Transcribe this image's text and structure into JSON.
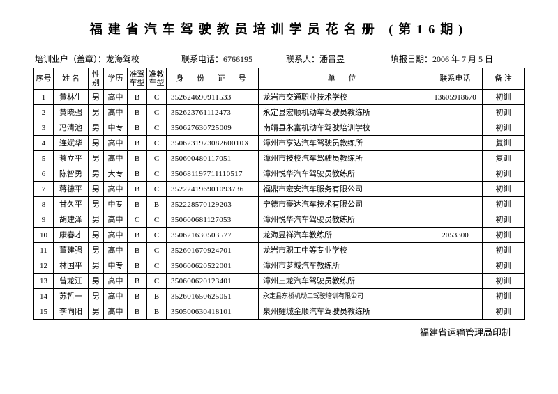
{
  "title": "福建省汽车驾驶教员培训学员花名册 (第16期)",
  "meta": {
    "org_label": "培训业户（盖章）：",
    "org_value": "龙海驾校",
    "tel_label": "联系电话：",
    "tel_value": "6766195",
    "contact_label": "联系人：",
    "contact_value": "潘晋昱",
    "date_label": "填报日期：",
    "date_value": "2006 年 7 月 5 日"
  },
  "columns": {
    "idx": "序号",
    "name": "姓 名",
    "sex": "性别",
    "edu": "学历",
    "car1": "准驾车型",
    "car2": "准教车型",
    "id": "身 份 证 号",
    "unit": "单    位",
    "phone": "联系电话",
    "note": "备 注"
  },
  "rows": [
    {
      "idx": "1",
      "name": "黄林生",
      "sex": "男",
      "edu": "高中",
      "car1": "B",
      "car2": "C",
      "id": "352624690911533",
      "unit": "龙岩市交通职业技术学校",
      "phone": "13605918670",
      "note": "初训",
      "small": false
    },
    {
      "idx": "2",
      "name": "黄晓强",
      "sex": "男",
      "edu": "高中",
      "car1": "B",
      "car2": "C",
      "id": "352623761112473",
      "unit": "永定县宏顺机动车驾驶员教练所",
      "phone": "",
      "note": "初训",
      "small": false
    },
    {
      "idx": "3",
      "name": "冯清池",
      "sex": "男",
      "edu": "中专",
      "car1": "B",
      "car2": "C",
      "id": "350627630725009",
      "unit": "南靖县永富机动车驾驶培训学校",
      "phone": "",
      "note": "初训",
      "small": false
    },
    {
      "idx": "4",
      "name": "连斌华",
      "sex": "男",
      "edu": "高中",
      "car1": "B",
      "car2": "C",
      "id": "350623197308260010X",
      "unit": "漳州市亨达汽车驾驶员教练所",
      "phone": "",
      "note": "复训",
      "small": false
    },
    {
      "idx": "5",
      "name": "蔡立平",
      "sex": "男",
      "edu": "高中",
      "car1": "B",
      "car2": "C",
      "id": "350600480117051",
      "unit": "漳州市技校汽车驾驶员教练所",
      "phone": "",
      "note": "复训",
      "small": false
    },
    {
      "idx": "6",
      "name": "陈智勇",
      "sex": "男",
      "edu": "大专",
      "car1": "B",
      "car2": "C",
      "id": "350681197711110517",
      "unit": "漳州悦华汽车驾驶员教练所",
      "phone": "",
      "note": "初训",
      "small": false
    },
    {
      "idx": "7",
      "name": "蒋德平",
      "sex": "男",
      "edu": "高中",
      "car1": "B",
      "car2": "C",
      "id": "352224196901093736",
      "unit": "福鼎市宏安汽车服务有限公司",
      "phone": "",
      "note": "初训",
      "small": false
    },
    {
      "idx": "8",
      "name": "甘久平",
      "sex": "男",
      "edu": "中专",
      "car1": "B",
      "car2": "B",
      "id": "352228570129203",
      "unit": "宁德市豪达汽车技术有限公司",
      "phone": "",
      "note": "初训",
      "small": false
    },
    {
      "idx": "9",
      "name": "胡建泽",
      "sex": "男",
      "edu": "高中",
      "car1": "C",
      "car2": "C",
      "id": "350600681127053",
      "unit": "漳州悦华汽车驾驶员教练所",
      "phone": "",
      "note": "初训",
      "small": false
    },
    {
      "idx": "10",
      "name": "康春才",
      "sex": "男",
      "edu": "高中",
      "car1": "B",
      "car2": "C",
      "id": "350621630503577",
      "unit": "龙海昱祥汽车教练所",
      "phone": "2053300",
      "note": "初训",
      "small": false
    },
    {
      "idx": "11",
      "name": "董建强",
      "sex": "男",
      "edu": "高中",
      "car1": "B",
      "car2": "C",
      "id": "352601670924701",
      "unit": "龙岩市职工中等专业学校",
      "phone": "",
      "note": "初训",
      "small": false
    },
    {
      "idx": "12",
      "name": "林国平",
      "sex": "男",
      "edu": "中专",
      "car1": "B",
      "car2": "C",
      "id": "350600620522001",
      "unit": "漳州市芗城汽车教练所",
      "phone": "",
      "note": "初训",
      "small": false
    },
    {
      "idx": "13",
      "name": "曾龙江",
      "sex": "男",
      "edu": "高中",
      "car1": "B",
      "car2": "C",
      "id": "350600620123401",
      "unit": "漳州三龙汽车驾驶员教练所",
      "phone": "",
      "note": "初训",
      "small": false
    },
    {
      "idx": "14",
      "name": "苏哲一",
      "sex": "男",
      "edu": "高中",
      "car1": "B",
      "car2": "B",
      "id": "352601650625051",
      "unit": "永定县东桥机动工驾驶培训有限公司",
      "phone": "",
      "note": "初训",
      "small": true
    },
    {
      "idx": "15",
      "name": "李向阳",
      "sex": "男",
      "edu": "高中",
      "car1": "B",
      "car2": "B",
      "id": "350500630418101",
      "unit": "泉州鲤城金顺汽车驾驶员教练所",
      "phone": "",
      "note": "初训",
      "small": false
    }
  ],
  "footer": "福建省运输管理局印制"
}
